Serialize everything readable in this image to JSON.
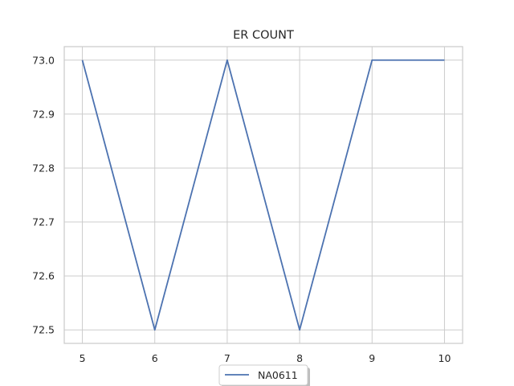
{
  "chart_data": {
    "type": "line",
    "title": "ER COUNT",
    "xlabel": "",
    "ylabel": "",
    "x": [
      5,
      6,
      7,
      8,
      9,
      10
    ],
    "series": [
      {
        "name": "NA0611",
        "color": "#4c72b0",
        "values": [
          73.0,
          72.5,
          73.0,
          72.5,
          73.0,
          73.0
        ]
      }
    ],
    "xticks": [
      5,
      6,
      7,
      8,
      9,
      10
    ],
    "xtick_labels": [
      "5",
      "6",
      "7",
      "8",
      "9",
      "10"
    ],
    "yticks": [
      72.5,
      72.6,
      72.7,
      72.8,
      72.9,
      73.0
    ],
    "ytick_labels": [
      "72.5",
      "72.6",
      "72.7",
      "72.8",
      "72.9",
      "73.0"
    ],
    "xlim": [
      4.75,
      10.25
    ],
    "ylim": [
      72.475,
      73.025
    ],
    "grid": true,
    "legend_position": "lower-center-outside"
  }
}
